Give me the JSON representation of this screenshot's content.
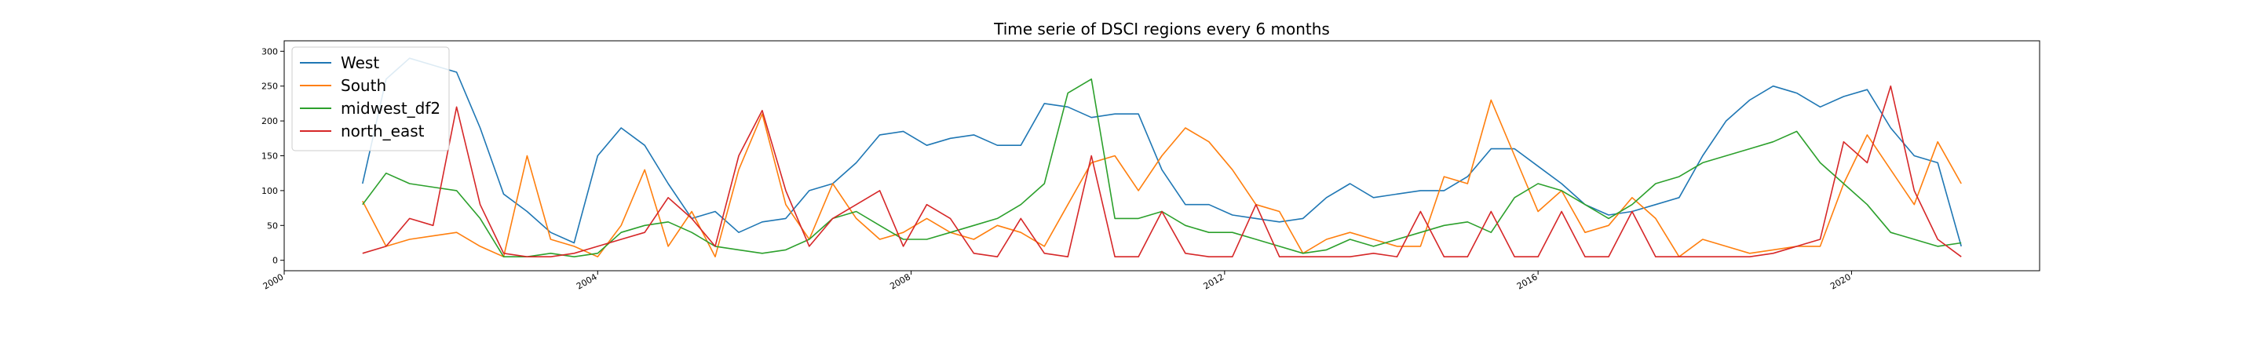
{
  "chart_data": {
    "type": "line",
    "title": "Time serie of DSCI regions every 6 months",
    "xlabel": "",
    "ylabel": "",
    "xlim": [
      2000.0,
      2022.4
    ],
    "ylim": [
      -15,
      315
    ],
    "xticks": [
      2000,
      2004,
      2008,
      2012,
      2016,
      2020
    ],
    "yticks": [
      0,
      50,
      100,
      150,
      200,
      250,
      300
    ],
    "grid": false,
    "legend_position": "top-left",
    "series": [
      {
        "name": "West",
        "color": "#1f77b4",
        "x": [
          2001.0,
          2001.3,
          2001.6,
          2001.9,
          2002.2,
          2002.5,
          2002.8,
          2003.1,
          2003.4,
          2003.7,
          2004.0,
          2004.3,
          2004.6,
          2004.9,
          2005.2,
          2005.5,
          2005.8,
          2006.1,
          2006.4,
          2006.7,
          2007.0,
          2007.3,
          2007.6,
          2007.9,
          2008.2,
          2008.5,
          2008.8,
          2009.1,
          2009.4,
          2009.7,
          2010.0,
          2010.3,
          2010.6,
          2010.9,
          2011.2,
          2011.5,
          2011.8,
          2012.1,
          2012.4,
          2012.7,
          2013.0,
          2013.3,
          2013.6,
          2013.9,
          2014.2,
          2014.5,
          2014.8,
          2015.1,
          2015.4,
          2015.7,
          2016.0,
          2016.3,
          2016.6,
          2016.9,
          2017.2,
          2017.5,
          2017.8,
          2018.1,
          2018.4,
          2018.7,
          2019.0,
          2019.3,
          2019.6,
          2019.9,
          2020.2,
          2020.5,
          2020.8,
          2021.1,
          2021.4
        ],
        "values": [
          110,
          260,
          290,
          280,
          270,
          190,
          95,
          70,
          40,
          25,
          150,
          190,
          165,
          110,
          60,
          70,
          40,
          55,
          60,
          100,
          110,
          140,
          180,
          185,
          165,
          175,
          180,
          165,
          165,
          225,
          220,
          205,
          210,
          210,
          130,
          80,
          80,
          65,
          60,
          55,
          60,
          90,
          110,
          90,
          95,
          100,
          100,
          120,
          160,
          160,
          135,
          110,
          80,
          65,
          70,
          80,
          90,
          150,
          200,
          230,
          250,
          240,
          220,
          235,
          245,
          190,
          150,
          140,
          20
        ]
      },
      {
        "name": "South",
        "color": "#ff7f0e",
        "x": [
          2001.0,
          2001.3,
          2001.6,
          2001.9,
          2002.2,
          2002.5,
          2002.8,
          2003.1,
          2003.4,
          2003.7,
          2004.0,
          2004.3,
          2004.6,
          2004.9,
          2005.2,
          2005.5,
          2005.8,
          2006.1,
          2006.4,
          2006.7,
          2007.0,
          2007.3,
          2007.6,
          2007.9,
          2008.2,
          2008.5,
          2008.8,
          2009.1,
          2009.4,
          2009.7,
          2010.0,
          2010.3,
          2010.6,
          2010.9,
          2011.2,
          2011.5,
          2011.8,
          2012.1,
          2012.4,
          2012.7,
          2013.0,
          2013.3,
          2013.6,
          2013.9,
          2014.2,
          2014.5,
          2014.8,
          2015.1,
          2015.4,
          2015.7,
          2016.0,
          2016.3,
          2016.6,
          2016.9,
          2017.2,
          2017.5,
          2017.8,
          2018.1,
          2018.4,
          2018.7,
          2019.0,
          2019.3,
          2019.6,
          2019.9,
          2020.2,
          2020.5,
          2020.8,
          2021.1,
          2021.4
        ],
        "values": [
          85,
          20,
          30,
          35,
          40,
          20,
          5,
          150,
          30,
          20,
          5,
          50,
          130,
          20,
          70,
          5,
          130,
          210,
          80,
          30,
          110,
          60,
          30,
          40,
          60,
          40,
          30,
          50,
          40,
          20,
          80,
          140,
          150,
          100,
          150,
          190,
          170,
          130,
          80,
          70,
          10,
          30,
          40,
          30,
          20,
          20,
          120,
          110,
          230,
          150,
          70,
          100,
          40,
          50,
          90,
          60,
          5,
          30,
          20,
          10,
          15,
          20,
          20,
          110,
          180,
          130,
          80,
          170,
          110
        ]
      },
      {
        "name": "midwest_df2",
        "color": "#2ca02c",
        "x": [
          2001.0,
          2001.3,
          2001.6,
          2001.9,
          2002.2,
          2002.5,
          2002.8,
          2003.1,
          2003.4,
          2003.7,
          2004.0,
          2004.3,
          2004.6,
          2004.9,
          2005.2,
          2005.5,
          2005.8,
          2006.1,
          2006.4,
          2006.7,
          2007.0,
          2007.3,
          2007.6,
          2007.9,
          2008.2,
          2008.5,
          2008.8,
          2009.1,
          2009.4,
          2009.7,
          2010.0,
          2010.3,
          2010.6,
          2010.9,
          2011.2,
          2011.5,
          2011.8,
          2012.1,
          2012.4,
          2012.7,
          2013.0,
          2013.3,
          2013.6,
          2013.9,
          2014.2,
          2014.5,
          2014.8,
          2015.1,
          2015.4,
          2015.7,
          2016.0,
          2016.3,
          2016.6,
          2016.9,
          2017.2,
          2017.5,
          2017.8,
          2018.1,
          2018.4,
          2018.7,
          2019.0,
          2019.3,
          2019.6,
          2019.9,
          2020.2,
          2020.5,
          2020.8,
          2021.1,
          2021.4
        ],
        "values": [
          80,
          125,
          110,
          105,
          100,
          60,
          5,
          5,
          10,
          5,
          10,
          40,
          50,
          55,
          40,
          20,
          15,
          10,
          15,
          30,
          60,
          70,
          50,
          30,
          30,
          40,
          50,
          60,
          80,
          110,
          240,
          260,
          60,
          60,
          70,
          50,
          40,
          40,
          30,
          20,
          10,
          15,
          30,
          20,
          30,
          40,
          50,
          55,
          40,
          90,
          110,
          100,
          80,
          60,
          80,
          110,
          120,
          140,
          150,
          160,
          170,
          185,
          140,
          110,
          80,
          40,
          30,
          20,
          25
        ]
      },
      {
        "name": "north_east",
        "color": "#d62728",
        "x": [
          2001.0,
          2001.3,
          2001.6,
          2001.9,
          2002.2,
          2002.5,
          2002.8,
          2003.1,
          2003.4,
          2003.7,
          2004.0,
          2004.3,
          2004.6,
          2004.9,
          2005.2,
          2005.5,
          2005.8,
          2006.1,
          2006.4,
          2006.7,
          2007.0,
          2007.3,
          2007.6,
          2007.9,
          2008.2,
          2008.5,
          2008.8,
          2009.1,
          2009.4,
          2009.7,
          2010.0,
          2010.3,
          2010.6,
          2010.9,
          2011.2,
          2011.5,
          2011.8,
          2012.1,
          2012.4,
          2012.7,
          2013.0,
          2013.3,
          2013.6,
          2013.9,
          2014.2,
          2014.5,
          2014.8,
          2015.1,
          2015.4,
          2015.7,
          2016.0,
          2016.3,
          2016.6,
          2016.9,
          2017.2,
          2017.5,
          2017.8,
          2018.1,
          2018.4,
          2018.7,
          2019.0,
          2019.3,
          2019.6,
          2019.9,
          2020.2,
          2020.5,
          2020.8,
          2021.1,
          2021.4
        ],
        "values": [
          10,
          20,
          60,
          50,
          220,
          80,
          10,
          5,
          5,
          10,
          20,
          30,
          40,
          90,
          60,
          20,
          150,
          215,
          100,
          20,
          60,
          80,
          100,
          20,
          80,
          60,
          10,
          5,
          60,
          10,
          5,
          150,
          5,
          5,
          70,
          10,
          5,
          5,
          80,
          5,
          5,
          5,
          5,
          10,
          5,
          70,
          5,
          5,
          70,
          5,
          5,
          70,
          5,
          5,
          70,
          5,
          5,
          5,
          5,
          5,
          10,
          20,
          30,
          170,
          140,
          250,
          100,
          30,
          5
        ]
      }
    ]
  }
}
